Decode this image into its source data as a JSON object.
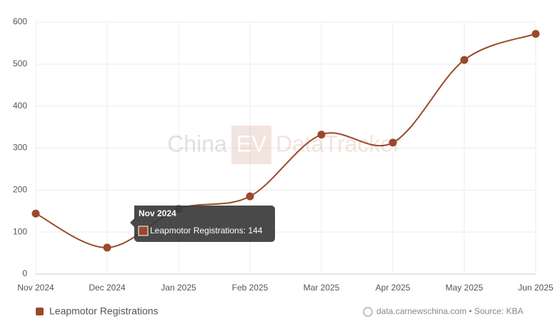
{
  "chart_data": {
    "type": "line",
    "x": [
      "Nov 2024",
      "Dec 2024",
      "Jan 2025",
      "Feb 2025",
      "Mar 2025",
      "Apr 2025",
      "May 2025",
      "Jun 2025"
    ],
    "series": [
      {
        "name": "Leapmotor Registrations",
        "color": "#9a4a2a",
        "values": [
          144,
          63,
          155,
          185,
          332,
          313,
          510,
          572
        ]
      }
    ],
    "ylim": [
      0,
      600
    ],
    "yticks": [
      0,
      100,
      200,
      300,
      400,
      500,
      600
    ],
    "grid": true,
    "legend": "bottom-left",
    "tooltip": {
      "title": "Nov 2024",
      "text": "Leapmotor Registrations: 144"
    },
    "watermark": {
      "left": "China",
      "badge": "EV",
      "right": "DataTracker"
    },
    "source": "data.carnewschina.com • Source: KBA"
  }
}
